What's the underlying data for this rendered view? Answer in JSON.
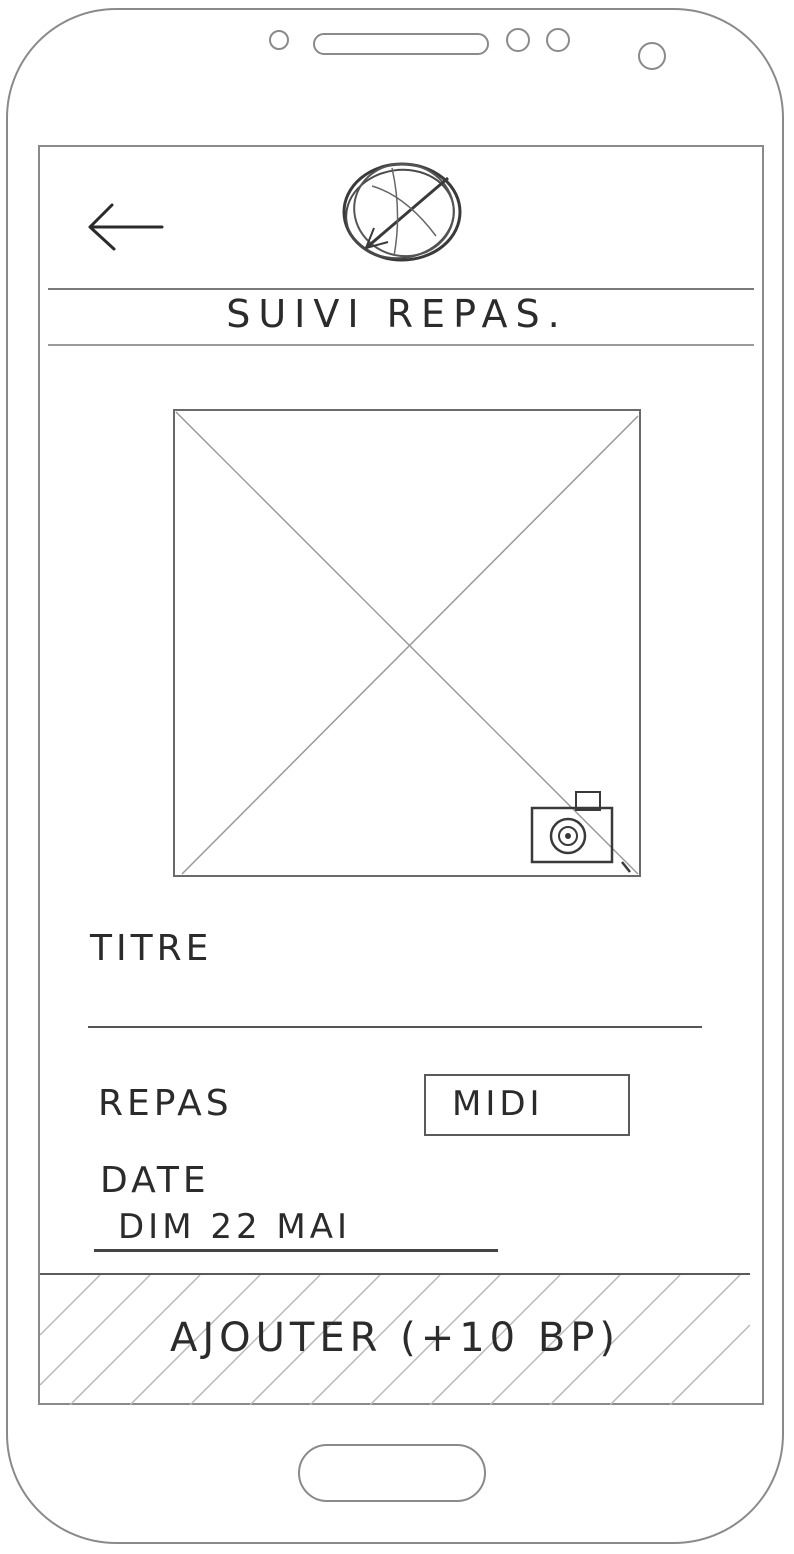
{
  "header": {
    "back_icon": "arrow-left-icon",
    "logo_icon": "scribbled-circle-logo-icon"
  },
  "page": {
    "title": "SUIVI REPAS."
  },
  "photo": {
    "placeholder_icon": "image-placeholder-icon",
    "camera_icon": "camera-icon"
  },
  "form": {
    "titre_label": "TITRE",
    "repas_label": "REPAS",
    "repas_value": "MIDI",
    "date_label": "DATE",
    "date_value": "DIM 22 MAI"
  },
  "footer": {
    "add_button_label": "AJOUTER (+10 BP)"
  },
  "colors": {
    "ink": "#2b2b2b",
    "outline": "#8a8a8a",
    "background": "#ffffff"
  }
}
